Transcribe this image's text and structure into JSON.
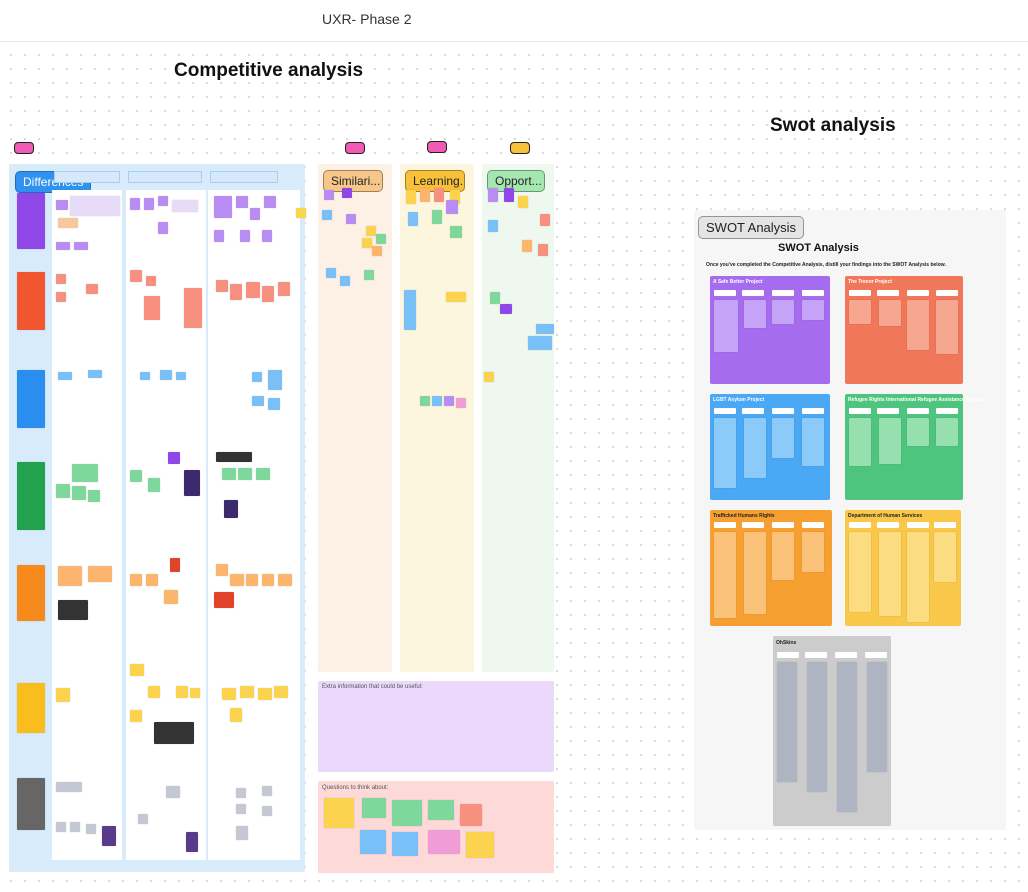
{
  "header": {
    "doc_title": "UXR- Phase 2"
  },
  "competitive": {
    "title": "Competitive analysis",
    "tabs": {
      "differences": "Differences",
      "similarities": "Similari...",
      "learnings": "Learning...",
      "opportunities": "Opport..."
    },
    "extra_info_label": "Extra information that could be useful:",
    "questions_label": "Questions to think about:"
  },
  "swot": {
    "title": "Swot analysis",
    "tab_label": "SWOT Analysis",
    "heading": "SWOT Analysis",
    "intro": "Once you've completed the Competitive Analysis, distill your findings into the SWOT Analysis below.",
    "frames": [
      {
        "label": "A Safe Better Project",
        "color": "#a56cf0"
      },
      {
        "label": "The Trevor Project",
        "color": "#f0775a"
      },
      {
        "label": "LGBT Asylum Project",
        "color": "#4ba8f5"
      },
      {
        "label": "Refugee Rights International Refugee Assistance Project",
        "color": "#4fc47e"
      },
      {
        "label": "Trafficked Humans Rights",
        "color": "#f7a032"
      },
      {
        "label": "Department of Human Services",
        "color": "#f9c84a"
      },
      {
        "label": "OhSkins",
        "color": "#cccccc"
      }
    ]
  },
  "colors": {
    "differences_bg": "#d7ebfb",
    "similarities_bg": "#fdf1e6",
    "learnings_bg": "#fdf6df",
    "opportunities_bg": "#eef8ee",
    "extra_bg": "#ead9fb",
    "questions_bg": "#fddad7",
    "differences_tab": "#2f92ee",
    "similarities_tab": "#f7c78a",
    "learnings_tab": "#f9c13a",
    "opportunities_tab": "#a6e6b1"
  }
}
